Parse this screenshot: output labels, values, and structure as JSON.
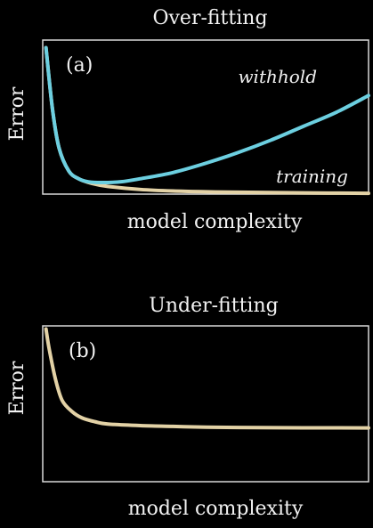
{
  "colors": {
    "background": "#000000",
    "axes": "#d9d9d9",
    "text": "#f2f2f2",
    "withhold": "#6ccfe0",
    "training": "#e3d2a6"
  },
  "chart_data": [
    {
      "type": "line",
      "title": "Over-fitting",
      "panel_label": "(a)",
      "xlabel": "model complexity",
      "ylabel": "Error",
      "xlim": [
        0,
        1
      ],
      "ylim": [
        0,
        1
      ],
      "grid": false,
      "series": [
        {
          "name": "withhold",
          "x": [
            0.01,
            0.03,
            0.05,
            0.08,
            0.11,
            0.14,
            0.18,
            0.24,
            0.3,
            0.4,
            0.5,
            0.6,
            0.7,
            0.8,
            0.9,
            1.0
          ],
          "y": [
            0.95,
            0.55,
            0.3,
            0.15,
            0.1,
            0.08,
            0.075,
            0.08,
            0.1,
            0.14,
            0.2,
            0.27,
            0.35,
            0.44,
            0.53,
            0.64
          ]
        },
        {
          "name": "training",
          "x": [
            0.01,
            0.03,
            0.05,
            0.08,
            0.11,
            0.15,
            0.2,
            0.3,
            0.4,
            0.5,
            0.6,
            0.8,
            1.0
          ],
          "y": [
            0.95,
            0.55,
            0.3,
            0.15,
            0.1,
            0.07,
            0.05,
            0.03,
            0.02,
            0.015,
            0.012,
            0.008,
            0.005
          ]
        }
      ]
    },
    {
      "type": "line",
      "title": "Under-fitting",
      "panel_label": "(b)",
      "xlabel": "model complexity",
      "ylabel": "Error",
      "xlim": [
        0,
        1
      ],
      "ylim": [
        0,
        1
      ],
      "grid": false,
      "series": [
        {
          "name": "",
          "x": [
            0.01,
            0.02,
            0.04,
            0.06,
            0.09,
            0.12,
            0.16,
            0.2,
            0.3,
            0.4,
            0.5,
            0.6,
            0.8,
            1.0
          ],
          "y": [
            0.98,
            0.85,
            0.65,
            0.52,
            0.45,
            0.41,
            0.385,
            0.37,
            0.36,
            0.355,
            0.35,
            0.348,
            0.346,
            0.345
          ]
        }
      ]
    }
  ]
}
